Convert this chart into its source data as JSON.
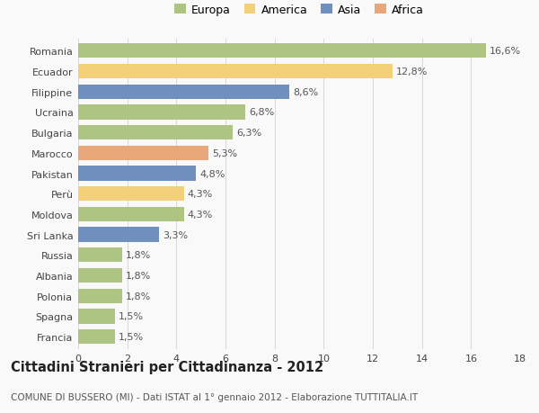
{
  "countries": [
    "Romania",
    "Ecuador",
    "Filippine",
    "Ucraina",
    "Bulgaria",
    "Marocco",
    "Pakistan",
    "Perù",
    "Moldova",
    "Sri Lanka",
    "Russia",
    "Albania",
    "Polonia",
    "Spagna",
    "Francia"
  ],
  "values": [
    16.6,
    12.8,
    8.6,
    6.8,
    6.3,
    5.3,
    4.8,
    4.3,
    4.3,
    3.3,
    1.8,
    1.8,
    1.8,
    1.5,
    1.5
  ],
  "continents": [
    "Europa",
    "America",
    "Asia",
    "Europa",
    "Europa",
    "Africa",
    "Asia",
    "America",
    "Europa",
    "Asia",
    "Europa",
    "Europa",
    "Europa",
    "Europa",
    "Europa"
  ],
  "colors": {
    "Europa": "#adc483",
    "America": "#f5d07a",
    "Asia": "#6f8fbe",
    "Africa": "#e8a87a"
  },
  "legend_order": [
    "Europa",
    "America",
    "Asia",
    "Africa"
  ],
  "title": "Cittadini Stranieri per Cittadinanza - 2012",
  "subtitle": "COMUNE DI BUSSERO (MI) - Dati ISTAT al 1° gennaio 2012 - Elaborazione TUTTITALIA.IT",
  "xlim": [
    0,
    18
  ],
  "xticks": [
    0,
    2,
    4,
    6,
    8,
    10,
    12,
    14,
    16,
    18
  ],
  "bar_height": 0.72,
  "background_color": "#f9f9f9",
  "grid_color": "#d8d8d8",
  "label_fontsize": 8,
  "title_fontsize": 10.5,
  "subtitle_fontsize": 7.5,
  "tick_fontsize": 8,
  "legend_fontsize": 9
}
